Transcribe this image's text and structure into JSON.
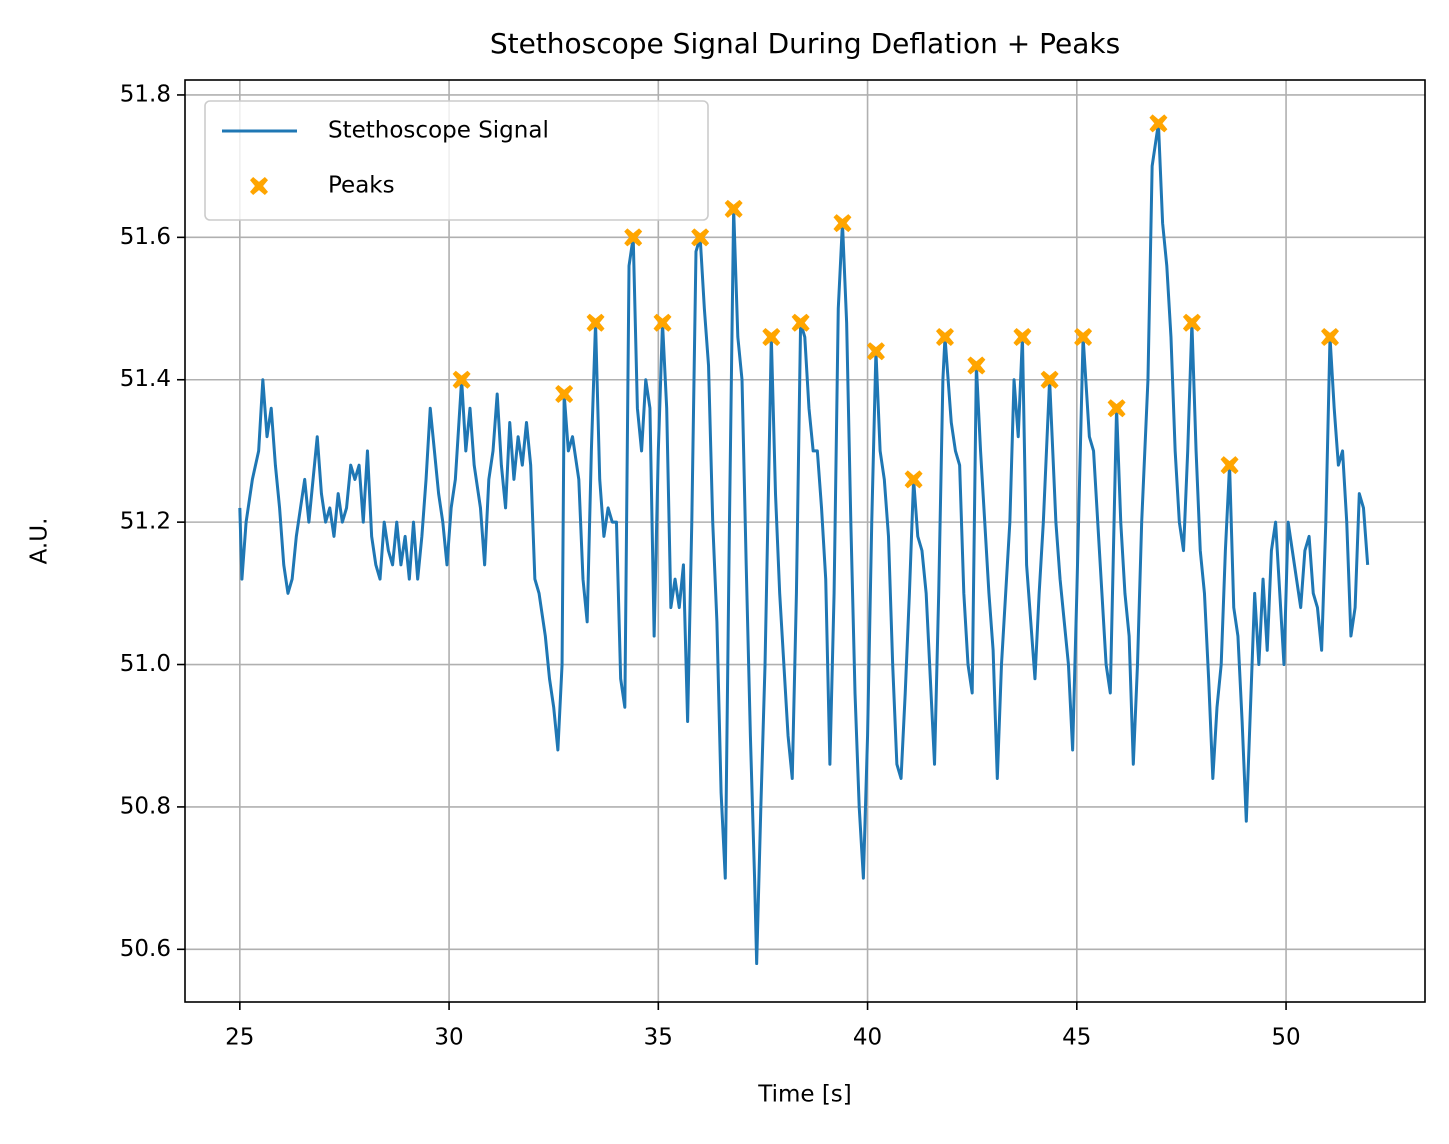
{
  "chart_data": {
    "type": "line",
    "title": "Stethoscope Signal During Deflation + Peaks",
    "xlabel": "Time [s]",
    "ylabel": "A.U.",
    "xlim": [
      23.69,
      53.32
    ],
    "ylim": [
      50.526,
      51.821
    ],
    "xticks": [
      25,
      30,
      35,
      40,
      45,
      50
    ],
    "yticks": [
      50.6,
      50.8,
      {
        "value": 51,
        "label": "51.0"
      },
      51.2,
      51.4,
      51.6,
      51.8
    ],
    "grid": true,
    "legend": "upper left",
    "series": [
      {
        "name": "Stethoscope Signal",
        "color": "#1f77b4",
        "type": "line",
        "x": [
          25.0,
          25.05,
          25.15,
          25.3,
          25.45,
          25.55,
          25.65,
          25.75,
          25.85,
          25.95,
          26.05,
          26.15,
          26.25,
          26.35,
          26.45,
          26.55,
          26.65,
          26.75,
          26.85,
          26.95,
          27.05,
          27.15,
          27.25,
          27.35,
          27.45,
          27.55,
          27.65,
          27.75,
          27.85,
          27.95,
          28.05,
          28.15,
          28.25,
          28.35,
          28.45,
          28.55,
          28.65,
          28.75,
          28.85,
          28.95,
          29.05,
          29.15,
          29.25,
          29.35,
          29.45,
          29.55,
          29.65,
          29.75,
          29.85,
          29.95,
          30.05,
          30.15,
          30.3,
          30.4,
          30.5,
          30.6,
          30.75,
          30.85,
          30.95,
          31.05,
          31.15,
          31.25,
          31.35,
          31.45,
          31.55,
          31.65,
          31.75,
          31.85,
          31.95,
          32.05,
          32.15,
          32.3,
          32.4,
          32.5,
          32.6,
          32.7,
          32.75,
          32.85,
          32.95,
          33.1,
          33.2,
          33.3,
          33.4,
          33.5,
          33.6,
          33.7,
          33.8,
          33.9,
          34.0,
          34.1,
          34.2,
          34.3,
          34.4,
          34.5,
          34.6,
          34.7,
          34.8,
          34.9,
          35.0,
          35.1,
          35.2,
          35.3,
          35.4,
          35.5,
          35.6,
          35.7,
          35.8,
          35.9,
          36.0,
          36.1,
          36.2,
          36.3,
          36.4,
          36.5,
          36.6,
          36.7,
          36.8,
          36.9,
          37.0,
          37.1,
          37.2,
          37.3,
          37.35,
          37.45,
          37.55,
          37.65,
          37.7,
          37.8,
          37.9,
          38.0,
          38.1,
          38.2,
          38.3,
          38.4,
          38.5,
          38.6,
          38.7,
          38.8,
          38.9,
          39.0,
          39.1,
          39.2,
          39.3,
          39.4,
          39.5,
          39.6,
          39.7,
          39.8,
          39.9,
          40.0,
          40.1,
          40.2,
          40.3,
          40.4,
          40.5,
          40.6,
          40.7,
          40.8,
          40.9,
          41.0,
          41.1,
          41.2,
          41.3,
          41.4,
          41.5,
          41.6,
          41.7,
          41.8,
          41.85,
          42.0,
          42.1,
          42.2,
          42.3,
          42.4,
          42.5,
          42.6,
          42.7,
          42.8,
          42.9,
          43.0,
          43.1,
          43.2,
          43.3,
          43.4,
          43.5,
          43.6,
          43.7,
          43.8,
          43.9,
          44.0,
          44.1,
          44.2,
          44.35,
          44.5,
          44.6,
          44.7,
          44.8,
          44.9,
          45.0,
          45.15,
          45.3,
          45.4,
          45.5,
          45.6,
          45.7,
          45.8,
          45.95,
          46.05,
          46.15,
          46.25,
          46.35,
          46.45,
          46.55,
          46.7,
          46.8,
          46.95,
          47.05,
          47.15,
          47.25,
          47.35,
          47.45,
          47.55,
          47.65,
          47.75,
          47.85,
          47.95,
          48.05,
          48.15,
          48.25,
          48.35,
          48.45,
          48.55,
          48.65,
          48.75,
          48.85,
          48.95,
          49.05,
          49.15,
          49.25,
          49.35,
          49.45,
          49.55,
          49.65,
          49.75,
          49.85,
          49.95,
          50.05,
          50.15,
          50.25,
          50.35,
          50.45,
          50.55,
          50.65,
          50.75,
          50.85,
          50.95,
          51.05,
          51.15,
          51.25,
          51.35,
          51.45,
          51.55,
          51.65,
          51.75,
          51.85,
          51.95
        ],
        "values": [
          51.22,
          51.12,
          51.2,
          51.26,
          51.3,
          51.4,
          51.32,
          51.36,
          51.28,
          51.22,
          51.14,
          51.1,
          51.12,
          51.18,
          51.22,
          51.26,
          51.2,
          51.26,
          51.32,
          51.24,
          51.2,
          51.22,
          51.18,
          51.24,
          51.2,
          51.22,
          51.28,
          51.26,
          51.28,
          51.2,
          51.3,
          51.18,
          51.14,
          51.12,
          51.2,
          51.16,
          51.14,
          51.2,
          51.14,
          51.18,
          51.12,
          51.2,
          51.12,
          51.18,
          51.26,
          51.36,
          51.3,
          51.24,
          51.2,
          51.14,
          51.22,
          51.26,
          51.4,
          51.3,
          51.36,
          51.28,
          51.22,
          51.14,
          51.26,
          51.3,
          51.38,
          51.28,
          51.22,
          51.34,
          51.26,
          51.32,
          51.28,
          51.34,
          51.28,
          51.12,
          51.1,
          51.04,
          50.98,
          50.94,
          50.88,
          51.0,
          51.38,
          51.3,
          51.32,
          51.26,
          51.12,
          51.06,
          51.3,
          51.48,
          51.26,
          51.18,
          51.22,
          51.2,
          51.2,
          50.98,
          50.94,
          51.56,
          51.6,
          51.36,
          51.3,
          51.4,
          51.36,
          51.04,
          51.3,
          51.48,
          51.36,
          51.08,
          51.12,
          51.08,
          51.14,
          50.92,
          51.2,
          51.58,
          51.6,
          51.5,
          51.42,
          51.2,
          51.06,
          50.82,
          50.7,
          51.2,
          51.64,
          51.46,
          51.4,
          51.14,
          50.9,
          50.7,
          50.58,
          50.8,
          51.0,
          51.3,
          51.46,
          51.24,
          51.1,
          51.0,
          50.9,
          50.84,
          51.1,
          51.48,
          51.46,
          51.36,
          51.3,
          51.3,
          51.22,
          51.12,
          50.86,
          51.1,
          51.5,
          51.62,
          51.48,
          51.2,
          50.96,
          50.8,
          50.7,
          50.9,
          51.2,
          51.44,
          51.3,
          51.26,
          51.18,
          51.0,
          50.86,
          50.84,
          50.96,
          51.1,
          51.26,
          51.18,
          51.16,
          51.1,
          50.98,
          50.86,
          51.1,
          51.4,
          51.46,
          51.34,
          51.3,
          51.28,
          51.1,
          51.0,
          50.96,
          51.42,
          51.3,
          51.2,
          51.1,
          51.02,
          50.84,
          51.0,
          51.1,
          51.2,
          51.4,
          51.32,
          51.46,
          51.14,
          51.06,
          50.98,
          51.1,
          51.2,
          51.4,
          51.2,
          51.12,
          51.06,
          51.0,
          50.88,
          51.1,
          51.46,
          51.32,
          51.3,
          51.2,
          51.1,
          51.0,
          50.96,
          51.36,
          51.2,
          51.1,
          51.04,
          50.86,
          51.0,
          51.2,
          51.4,
          51.7,
          51.76,
          51.62,
          51.56,
          51.46,
          51.3,
          51.2,
          51.16,
          51.3,
          51.48,
          51.3,
          51.16,
          51.1,
          50.98,
          50.84,
          50.94,
          51.0,
          51.16,
          51.28,
          51.08,
          51.04,
          50.92,
          50.78,
          50.94,
          51.1,
          51.0,
          51.12,
          51.02,
          51.16,
          51.2,
          51.1,
          51.0,
          51.2,
          51.16,
          51.12,
          51.08,
          51.16,
          51.18,
          51.1,
          51.08,
          51.02,
          51.2,
          51.46,
          51.36,
          51.28,
          51.3,
          51.2,
          51.04,
          51.08,
          51.24,
          51.22,
          51.14
        ]
      },
      {
        "name": "Peaks",
        "color": "orange",
        "type": "scatter",
        "x": [
          30.3,
          32.75,
          33.5,
          34.4,
          35.1,
          36.0,
          36.8,
          37.7,
          38.4,
          39.4,
          40.2,
          41.1,
          41.85,
          42.6,
          43.7,
          44.35,
          45.15,
          45.95,
          46.95,
          47.75,
          48.65,
          51.05
        ],
        "values": [
          51.4,
          51.38,
          51.48,
          51.6,
          51.48,
          51.6,
          51.64,
          51.46,
          51.48,
          51.62,
          51.44,
          51.26,
          51.46,
          51.42,
          51.46,
          51.4,
          51.46,
          51.36,
          51.76,
          51.48,
          51.28,
          51.46
        ]
      }
    ]
  }
}
